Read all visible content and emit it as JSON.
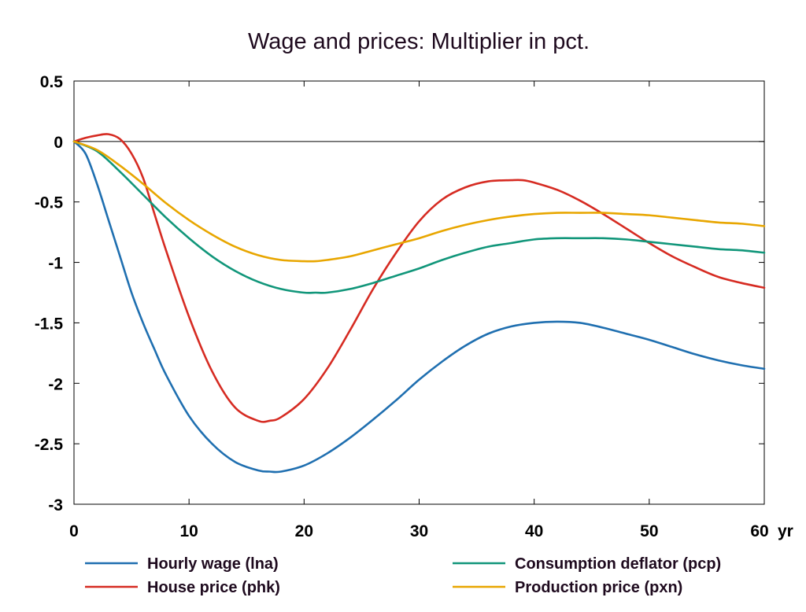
{
  "chart_data": {
    "type": "line",
    "title": "Wage and prices: Multiplier in pct.",
    "xlabel": "",
    "ylabel": "",
    "x_unit": "yr",
    "xlim": [
      0,
      60
    ],
    "ylim": [
      -3,
      0.5
    ],
    "x_ticks": [
      "0",
      "10",
      "20",
      "30",
      "40",
      "50",
      "60"
    ],
    "x_tick_values": [
      0,
      10,
      20,
      30,
      40,
      50,
      60
    ],
    "y_ticks": [
      "0.5",
      "0",
      "-0.5",
      "-1",
      "-1.5",
      "-2",
      "-2.5",
      "-3"
    ],
    "y_tick_values": [
      0.5,
      0,
      -0.5,
      -1,
      -1.5,
      -2,
      -2.5,
      -3
    ],
    "grid": false,
    "zero_line": true,
    "legend_position": "bottom",
    "series": [
      {
        "name": "Hourly wage (lna)",
        "color": "#1f6fb0",
        "x": [
          0,
          1,
          2,
          3,
          4,
          5,
          6,
          7,
          8,
          10,
          12,
          14,
          16,
          17,
          18,
          20,
          22,
          24,
          26,
          28,
          30,
          32,
          34,
          36,
          38,
          40,
          42,
          44,
          46,
          48,
          50,
          52,
          54,
          56,
          58,
          60
        ],
        "y": [
          0,
          -0.1,
          -0.35,
          -0.65,
          -0.95,
          -1.25,
          -1.5,
          -1.72,
          -1.93,
          -2.27,
          -2.5,
          -2.65,
          -2.72,
          -2.73,
          -2.73,
          -2.68,
          -2.58,
          -2.45,
          -2.3,
          -2.14,
          -1.97,
          -1.82,
          -1.69,
          -1.59,
          -1.53,
          -1.5,
          -1.49,
          -1.5,
          -1.54,
          -1.59,
          -1.64,
          -1.7,
          -1.76,
          -1.81,
          -1.85,
          -1.88
        ]
      },
      {
        "name": "House price (phk)",
        "color": "#d62b22",
        "x": [
          0,
          1,
          2,
          3,
          4,
          5,
          6,
          7,
          8,
          10,
          12,
          14,
          16,
          17,
          18,
          20,
          22,
          24,
          26,
          28,
          30,
          32,
          34,
          36,
          38,
          39,
          40,
          42,
          44,
          46,
          48,
          50,
          52,
          54,
          56,
          58,
          60
        ],
        "y": [
          0,
          0.03,
          0.05,
          0.06,
          0.02,
          -0.1,
          -0.3,
          -0.6,
          -0.9,
          -1.45,
          -1.9,
          -2.2,
          -2.31,
          -2.31,
          -2.28,
          -2.13,
          -1.88,
          -1.56,
          -1.22,
          -0.92,
          -0.66,
          -0.48,
          -0.38,
          -0.33,
          -0.32,
          -0.32,
          -0.34,
          -0.4,
          -0.49,
          -0.6,
          -0.72,
          -0.84,
          -0.95,
          -1.04,
          -1.12,
          -1.17,
          -1.21
        ]
      },
      {
        "name": "Consumption deflator (pcp)",
        "color": "#11967a",
        "x": [
          0,
          2,
          4,
          6,
          8,
          10,
          12,
          14,
          16,
          18,
          20,
          21,
          22,
          24,
          26,
          28,
          30,
          32,
          34,
          36,
          38,
          40,
          42,
          44,
          46,
          48,
          50,
          52,
          54,
          56,
          58,
          60
        ],
        "y": [
          0,
          -0.08,
          -0.25,
          -0.44,
          -0.63,
          -0.8,
          -0.95,
          -1.07,
          -1.16,
          -1.22,
          -1.25,
          -1.25,
          -1.25,
          -1.22,
          -1.17,
          -1.11,
          -1.05,
          -0.98,
          -0.92,
          -0.87,
          -0.84,
          -0.81,
          -0.8,
          -0.8,
          -0.8,
          -0.81,
          -0.83,
          -0.85,
          -0.87,
          -0.89,
          -0.9,
          -0.92
        ]
      },
      {
        "name": "Production price (pxn)",
        "color": "#e8a600",
        "x": [
          0,
          2,
          4,
          6,
          8,
          10,
          12,
          14,
          16,
          18,
          20,
          21,
          22,
          24,
          26,
          28,
          30,
          32,
          34,
          36,
          38,
          40,
          42,
          44,
          46,
          48,
          50,
          52,
          54,
          56,
          58,
          60
        ],
        "y": [
          0,
          -0.07,
          -0.2,
          -0.35,
          -0.51,
          -0.65,
          -0.77,
          -0.87,
          -0.94,
          -0.98,
          -0.99,
          -0.99,
          -0.98,
          -0.95,
          -0.9,
          -0.85,
          -0.8,
          -0.74,
          -0.69,
          -0.65,
          -0.62,
          -0.6,
          -0.59,
          -0.59,
          -0.59,
          -0.6,
          -0.61,
          -0.63,
          -0.65,
          -0.67,
          -0.68,
          -0.7
        ]
      }
    ]
  }
}
